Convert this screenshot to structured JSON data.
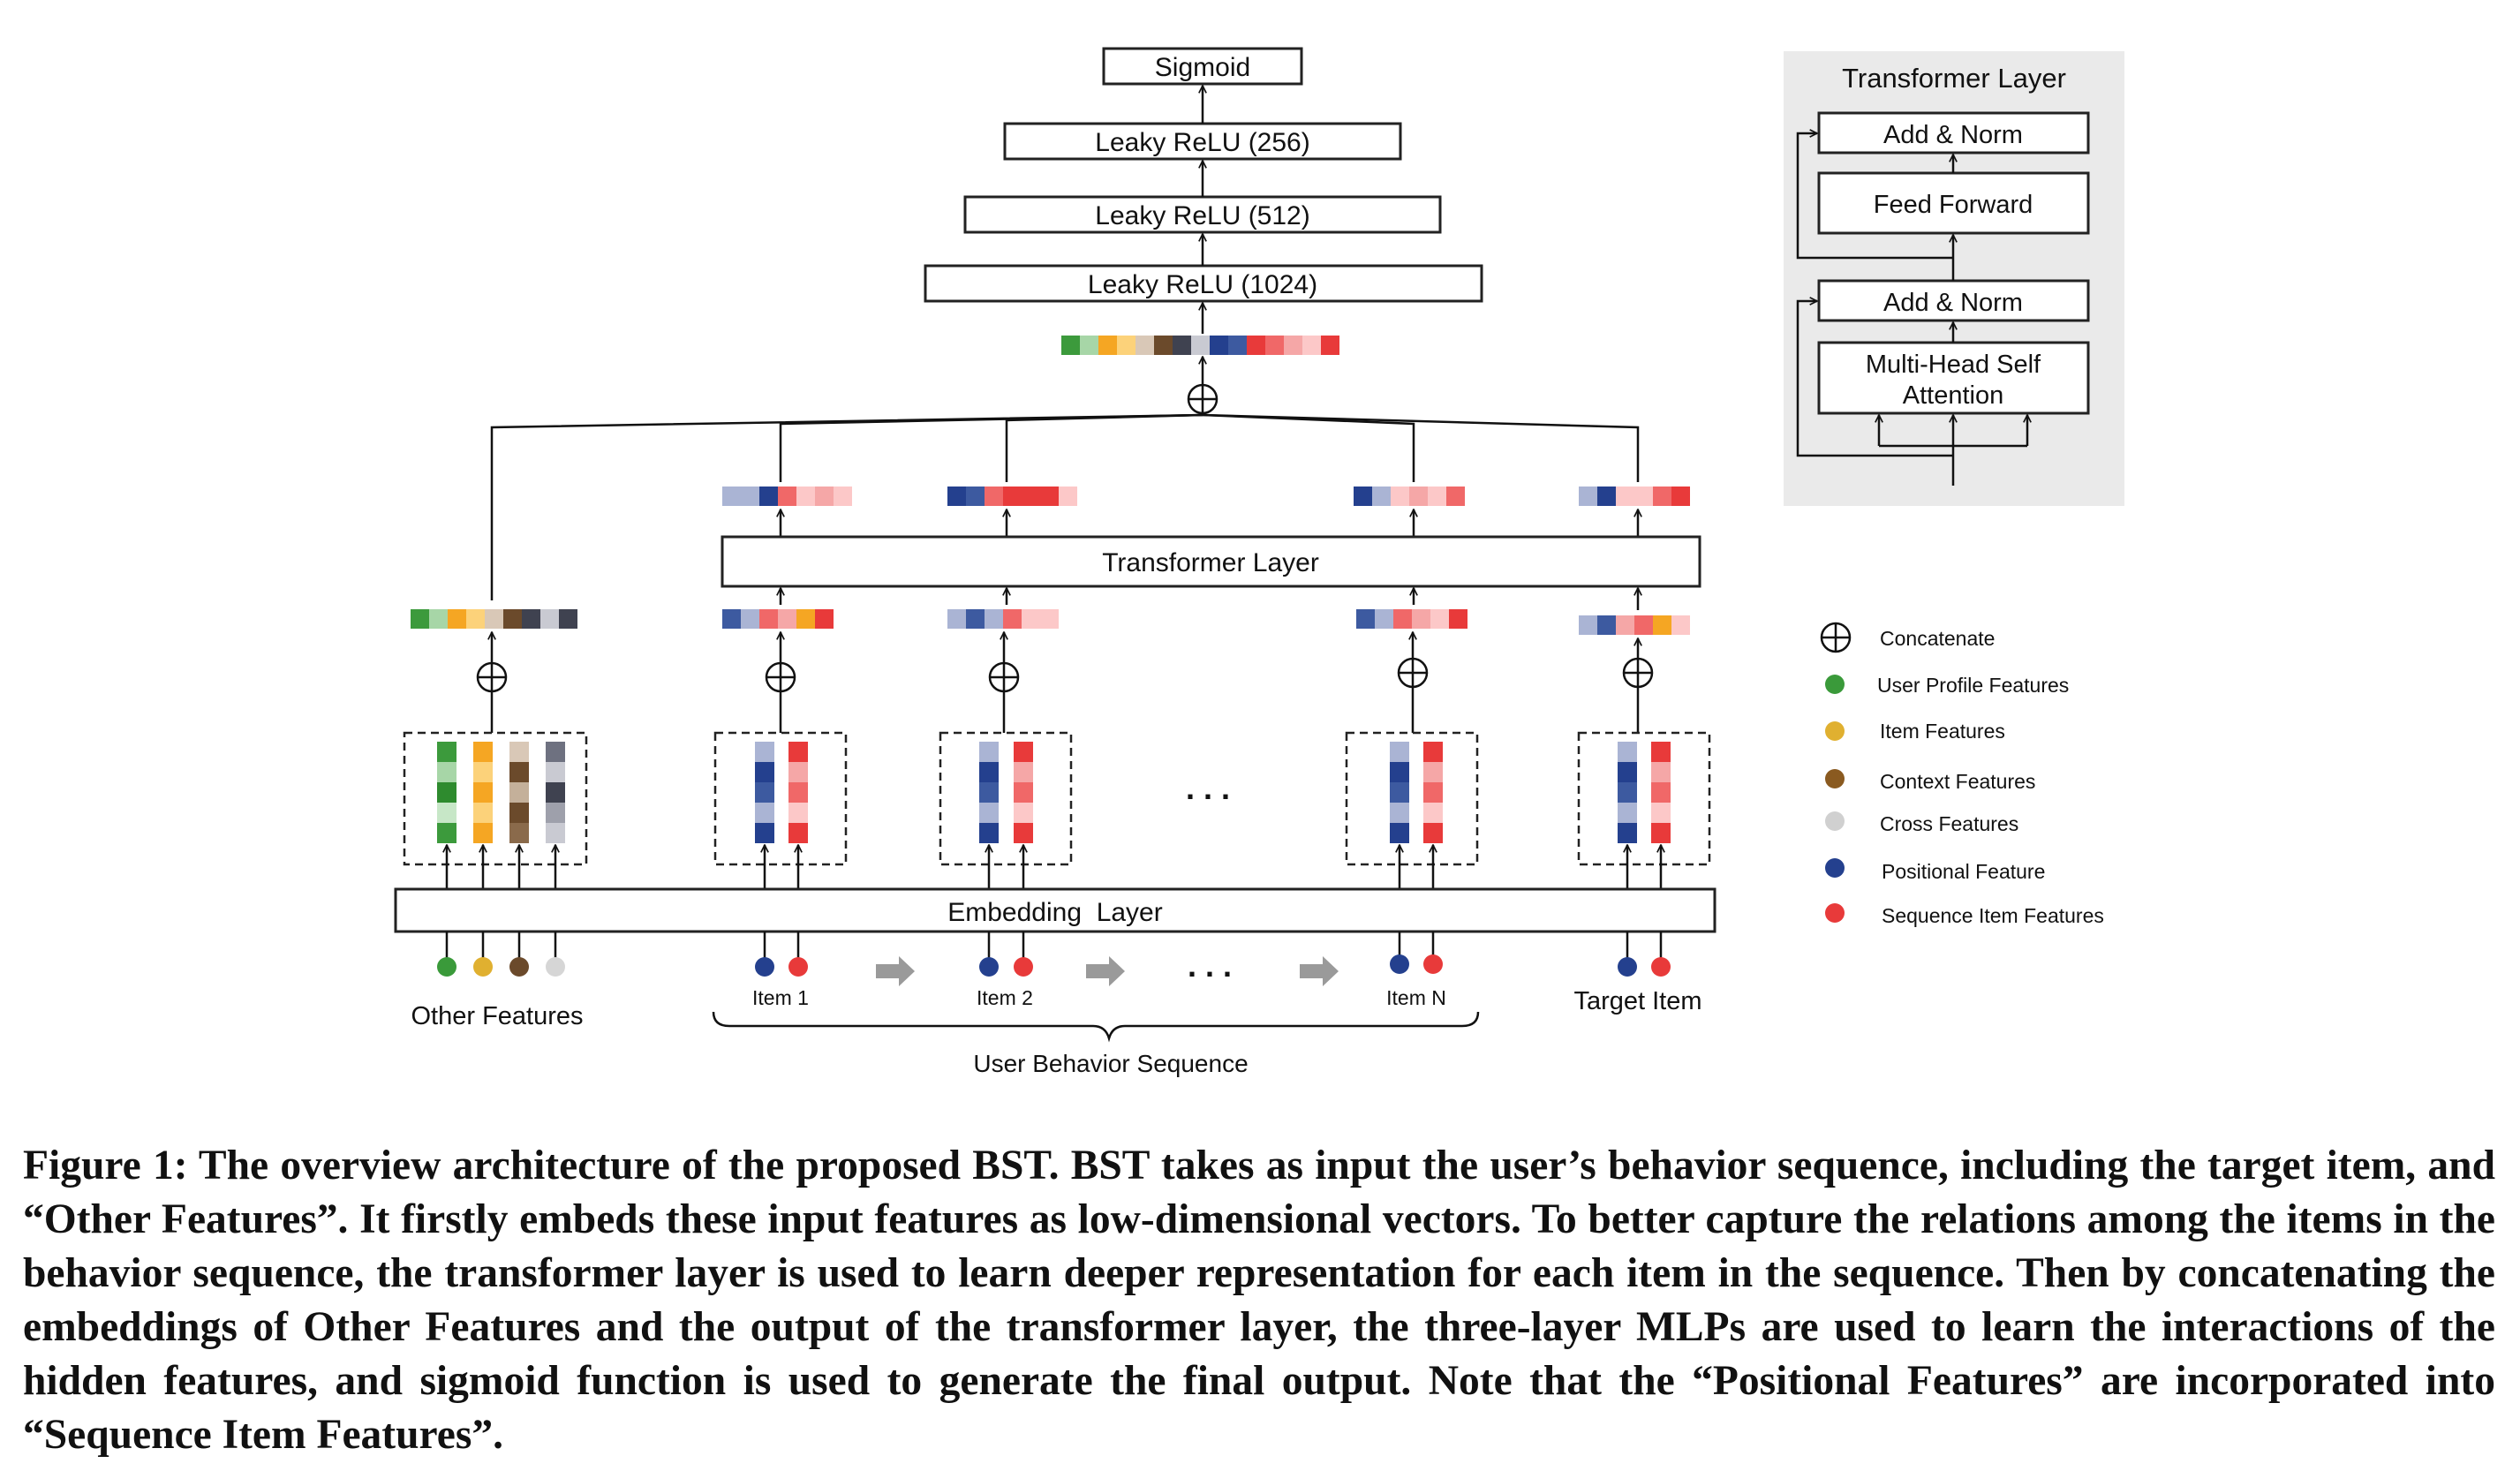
{
  "colors": {
    "user_profile": [
      "#3c9a3c",
      "#a7d6a7",
      "#2e8b2e",
      "#c7e7c7",
      "#3c9a3c"
    ],
    "item": [
      "#f5a623",
      "#fcd27a",
      "#f5a623",
      "#fcd27a",
      "#f5a623"
    ],
    "context": [
      "#d9c8b7",
      "#6b4a2b",
      "#c4b09a",
      "#6b4a2b",
      "#8a6a4b"
    ],
    "cross": [
      "#6e7180",
      "#c9cad2",
      "#3f4250",
      "#9ea0ab",
      "#c9cad2"
    ],
    "positional": [
      "#aab4d4",
      "#24408e",
      "#3d5aa0",
      "#aab4d4",
      "#24408e"
    ],
    "sequence": [
      "#e83a3a",
      "#f5a7a7",
      "#f06868",
      "#fcc8c8",
      "#e83a3a"
    ],
    "legend_dot_colors": [
      "#3a9a3a",
      "#e0b030",
      "#8a5a20",
      "#d0d0d0",
      "#24408e",
      "#e83a3a"
    ],
    "panel_bg": "#eaeaea",
    "arrow_gray": "#9a9a9a"
  },
  "diagram": {
    "mlp_layers": [
      "Sigmoid",
      "Leaky ReLU (256)",
      "Leaky ReLU (512)",
      "Leaky ReLU (1024)"
    ],
    "transformer_layer_label": "Transformer Layer",
    "embedding_layer_label": "Embedding  Layer",
    "ellipsis": ". . .",
    "input_groups": {
      "other_features": "Other Features",
      "items": [
        "Item 1",
        "Item 2",
        "Item N"
      ],
      "target_item": "Target Item",
      "user_behavior_sequence": "User Behavior Sequence"
    },
    "transformer_panel": {
      "title": "Transformer Layer",
      "blocks": [
        "Add & Norm",
        "Feed Forward",
        "Add & Norm",
        "Multi-Head Self",
        "Attention"
      ]
    },
    "legend": [
      {
        "label": "Concatenate",
        "icon": "concat-icon"
      },
      {
        "label": "User Profile Features",
        "icon": "dot-icon"
      },
      {
        "label": "Item Features",
        "icon": "dot-icon"
      },
      {
        "label": "Context Features",
        "icon": "dot-icon"
      },
      {
        "label": "Cross Features",
        "icon": "dot-icon"
      },
      {
        "label": "Positional Feature",
        "icon": "dot-icon"
      },
      {
        "label": "Sequence Item Features",
        "icon": "dot-icon"
      }
    ]
  },
  "caption": "Figure 1: The overview architecture of the proposed BST. BST takes as input the user’s behavior sequence, including the target item, and “Other Features”. It firstly embeds these input features as low-dimensional vectors. To better capture the relations among the items in the behavior sequence, the transformer layer is used to learn deeper representation for each item in the sequence. Then by concatenating the embeddings of Other Features and the output of the transformer layer, the three-layer MLPs are used to learn the interactions of the hidden features, and sigmoid function is used to generate the final output. Note that the “Positional Features” are incorporated into “Sequence Item Features”."
}
